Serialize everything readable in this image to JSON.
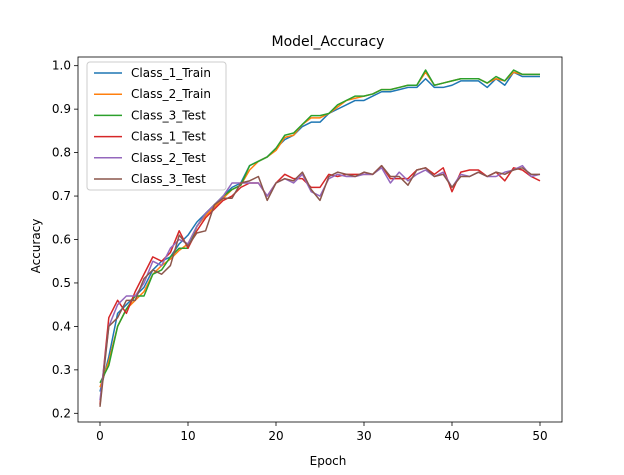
{
  "chart_data": {
    "type": "line",
    "title": "Model_Accuracy",
    "xlabel": "Epoch",
    "ylabel": "Accuracy",
    "xlim": [
      -2.5,
      52.5
    ],
    "ylim": [
      0.18,
      1.02
    ],
    "xticks": [
      0,
      10,
      20,
      30,
      40,
      50
    ],
    "yticks": [
      0.2,
      0.3,
      0.4,
      0.5,
      0.6,
      0.7,
      0.8,
      0.9,
      1.0
    ],
    "grid": false,
    "legend_position": "upper-left",
    "series": [
      {
        "name": "Class_1_Train",
        "color": "#1f77b4",
        "values": [
          0.25,
          0.33,
          0.43,
          0.45,
          0.47,
          0.49,
          0.53,
          0.55,
          0.56,
          0.59,
          0.61,
          0.64,
          0.66,
          0.68,
          0.7,
          0.72,
          0.73,
          0.77,
          0.78,
          0.79,
          0.81,
          0.83,
          0.84,
          0.86,
          0.87,
          0.87,
          0.89,
          0.9,
          0.91,
          0.92,
          0.92,
          0.93,
          0.94,
          0.94,
          0.945,
          0.95,
          0.95,
          0.97,
          0.95,
          0.95,
          0.955,
          0.965,
          0.965,
          0.965,
          0.95,
          0.97,
          0.955,
          0.985,
          0.975,
          0.975,
          0.975
        ]
      },
      {
        "name": "Class_2_Train",
        "color": "#ff7f0e",
        "values": [
          0.26,
          0.32,
          0.4,
          0.44,
          0.46,
          0.48,
          0.52,
          0.54,
          0.555,
          0.575,
          0.59,
          0.63,
          0.655,
          0.675,
          0.695,
          0.715,
          0.725,
          0.76,
          0.78,
          0.79,
          0.805,
          0.835,
          0.84,
          0.865,
          0.88,
          0.88,
          0.89,
          0.905,
          0.92,
          0.925,
          0.93,
          0.935,
          0.945,
          0.945,
          0.95,
          0.955,
          0.955,
          0.985,
          0.955,
          0.96,
          0.965,
          0.97,
          0.97,
          0.97,
          0.96,
          0.97,
          0.965,
          0.985,
          0.98,
          0.98,
          0.98
        ]
      },
      {
        "name": "Class_3_Test",
        "color": "#2ca02c",
        "values": [
          0.27,
          0.31,
          0.4,
          0.44,
          0.47,
          0.47,
          0.52,
          0.53,
          0.56,
          0.58,
          0.58,
          0.63,
          0.66,
          0.68,
          0.7,
          0.715,
          0.725,
          0.77,
          0.78,
          0.79,
          0.81,
          0.84,
          0.845,
          0.865,
          0.885,
          0.885,
          0.89,
          0.91,
          0.92,
          0.93,
          0.93,
          0.935,
          0.945,
          0.945,
          0.95,
          0.955,
          0.955,
          0.99,
          0.955,
          0.96,
          0.965,
          0.97,
          0.97,
          0.97,
          0.96,
          0.975,
          0.965,
          0.99,
          0.98,
          0.98,
          0.98
        ]
      },
      {
        "name": "Class_1_Test",
        "color": "#d62728",
        "values": [
          0.22,
          0.42,
          0.46,
          0.43,
          0.48,
          0.52,
          0.56,
          0.55,
          0.57,
          0.62,
          0.58,
          0.62,
          0.65,
          0.67,
          0.69,
          0.7,
          0.72,
          0.73,
          0.73,
          0.7,
          0.73,
          0.75,
          0.74,
          0.74,
          0.72,
          0.72,
          0.75,
          0.745,
          0.75,
          0.75,
          0.75,
          0.75,
          0.77,
          0.74,
          0.74,
          0.74,
          0.76,
          0.765,
          0.75,
          0.765,
          0.71,
          0.755,
          0.76,
          0.76,
          0.745,
          0.755,
          0.735,
          0.765,
          0.76,
          0.745,
          0.735
        ]
      },
      {
        "name": "Class_2_Test",
        "color": "#9467bd",
        "values": [
          0.23,
          0.4,
          0.45,
          0.47,
          0.47,
          0.5,
          0.55,
          0.54,
          0.58,
          0.6,
          0.59,
          0.63,
          0.66,
          0.68,
          0.7,
          0.73,
          0.73,
          0.73,
          0.73,
          0.7,
          0.73,
          0.74,
          0.73,
          0.75,
          0.71,
          0.7,
          0.74,
          0.75,
          0.745,
          0.745,
          0.75,
          0.75,
          0.765,
          0.73,
          0.755,
          0.735,
          0.75,
          0.76,
          0.745,
          0.755,
          0.72,
          0.75,
          0.745,
          0.755,
          0.745,
          0.745,
          0.755,
          0.76,
          0.77,
          0.745,
          0.75
        ]
      },
      {
        "name": "Class_3_Test",
        "color": "#8c564b",
        "values": [
          0.215,
          0.4,
          0.42,
          0.46,
          0.46,
          0.51,
          0.53,
          0.52,
          0.54,
          0.61,
          0.585,
          0.615,
          0.62,
          0.68,
          0.695,
          0.695,
          0.73,
          0.735,
          0.745,
          0.69,
          0.73,
          0.74,
          0.735,
          0.755,
          0.715,
          0.69,
          0.745,
          0.755,
          0.75,
          0.745,
          0.755,
          0.75,
          0.77,
          0.745,
          0.745,
          0.725,
          0.76,
          0.765,
          0.745,
          0.75,
          0.72,
          0.745,
          0.745,
          0.755,
          0.745,
          0.755,
          0.75,
          0.76,
          0.765,
          0.75,
          0.75
        ]
      }
    ]
  }
}
